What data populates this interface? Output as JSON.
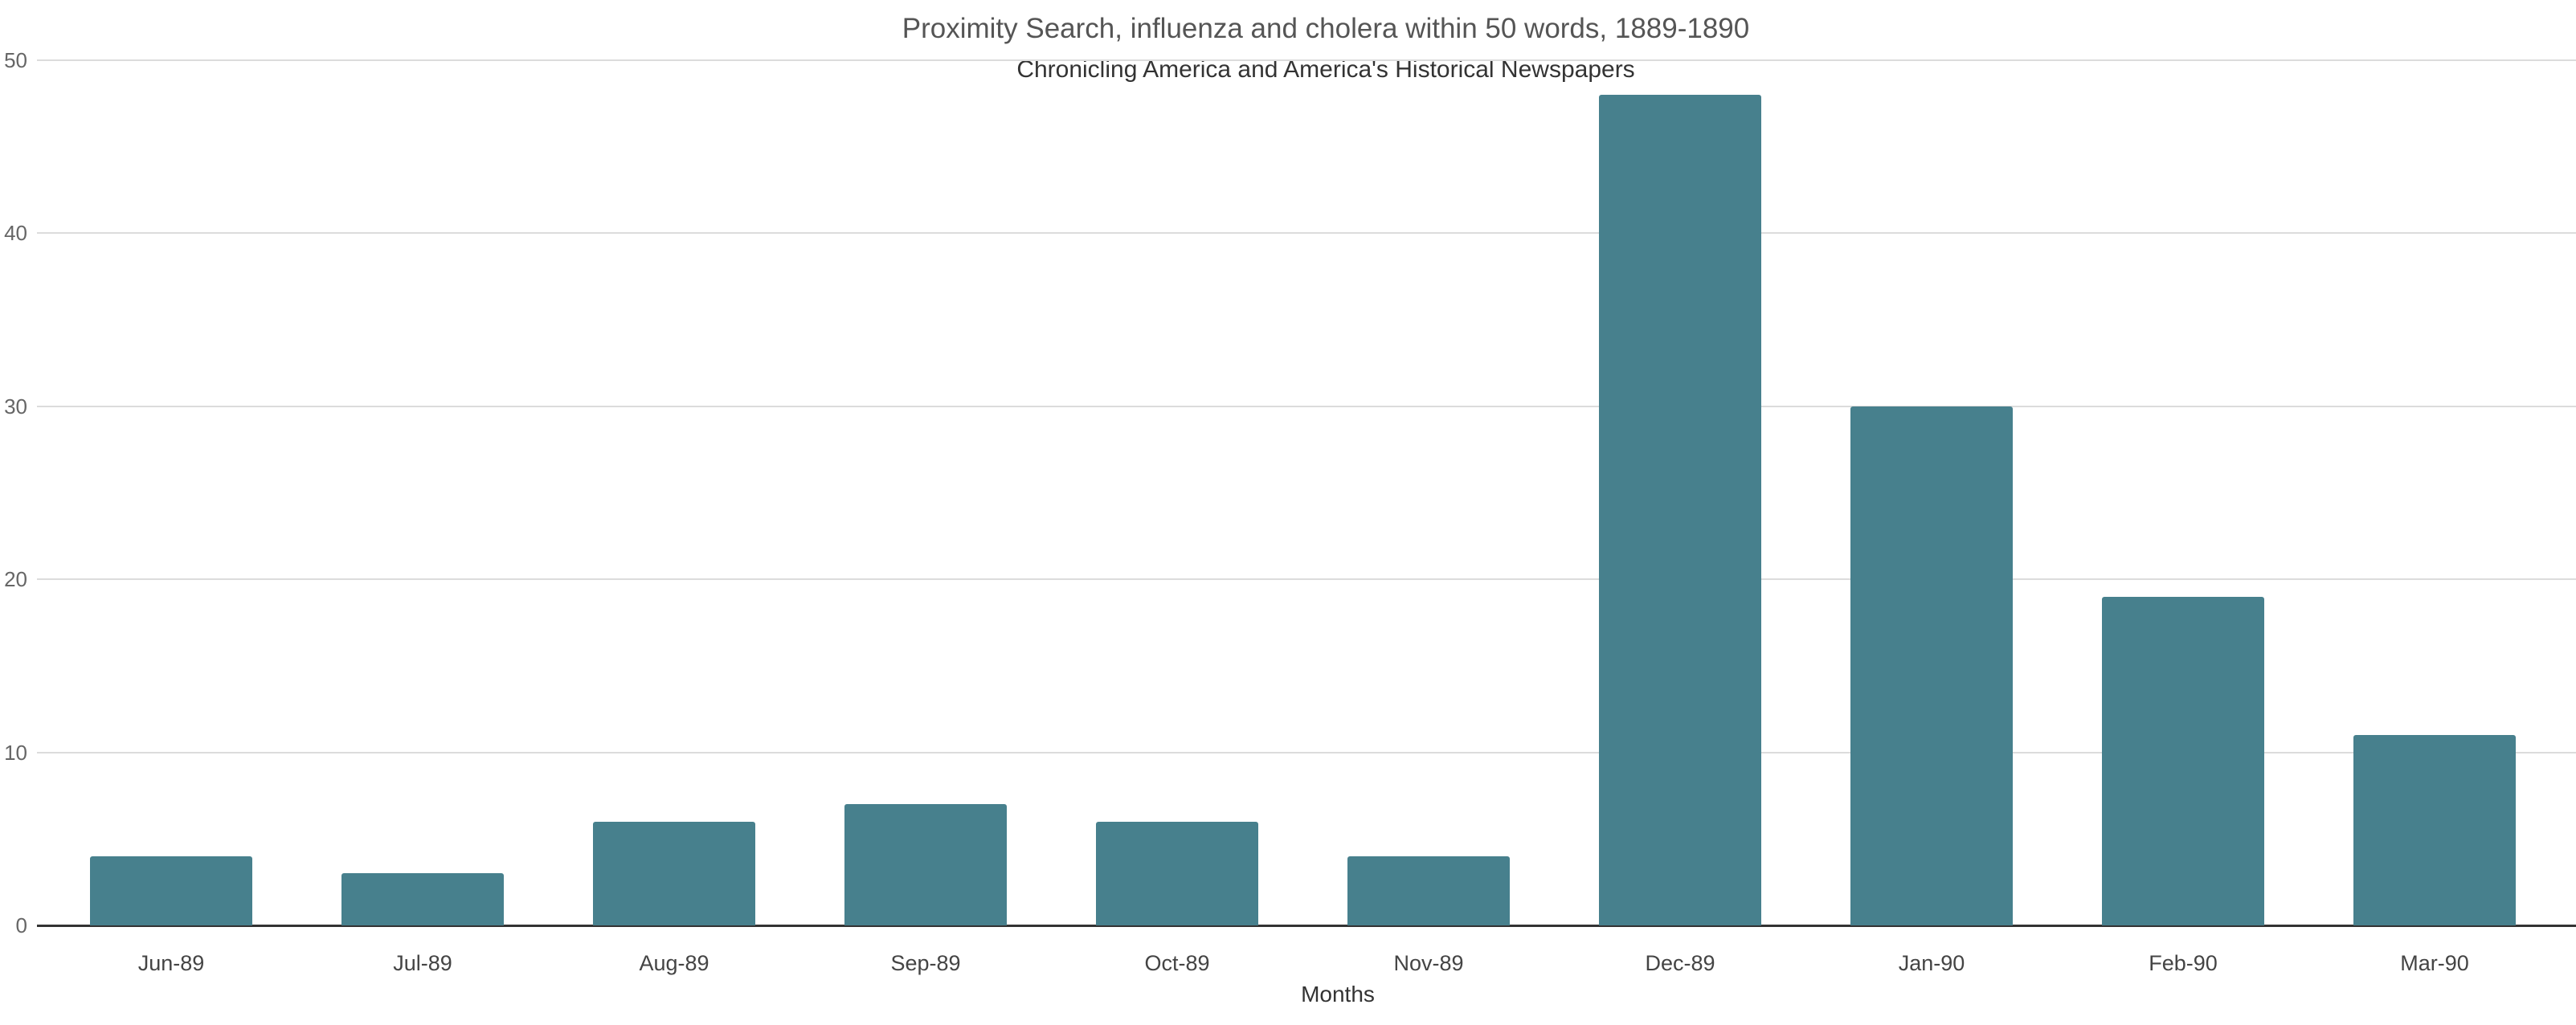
{
  "chart_data": {
    "type": "bar",
    "title": "Proximity Search, influenza and cholera within 50 words, 1889-1890",
    "subtitle": "Chronicling America and America's Historical Newspapers",
    "xlabel": "Months",
    "ylabel": "",
    "categories": [
      "Jun-89",
      "Jul-89",
      "Aug-89",
      "Sep-89",
      "Oct-89",
      "Nov-89",
      "Dec-89",
      "Jan-90",
      "Feb-90",
      "Mar-90"
    ],
    "values": [
      4,
      3,
      6,
      7,
      6,
      4,
      48,
      30,
      19,
      11
    ],
    "ylim": [
      0,
      50
    ],
    "yticks": [
      "0",
      "10",
      "20",
      "30",
      "40",
      "50"
    ],
    "grid": true,
    "legend": "none",
    "bar_color": "#47808d"
  }
}
